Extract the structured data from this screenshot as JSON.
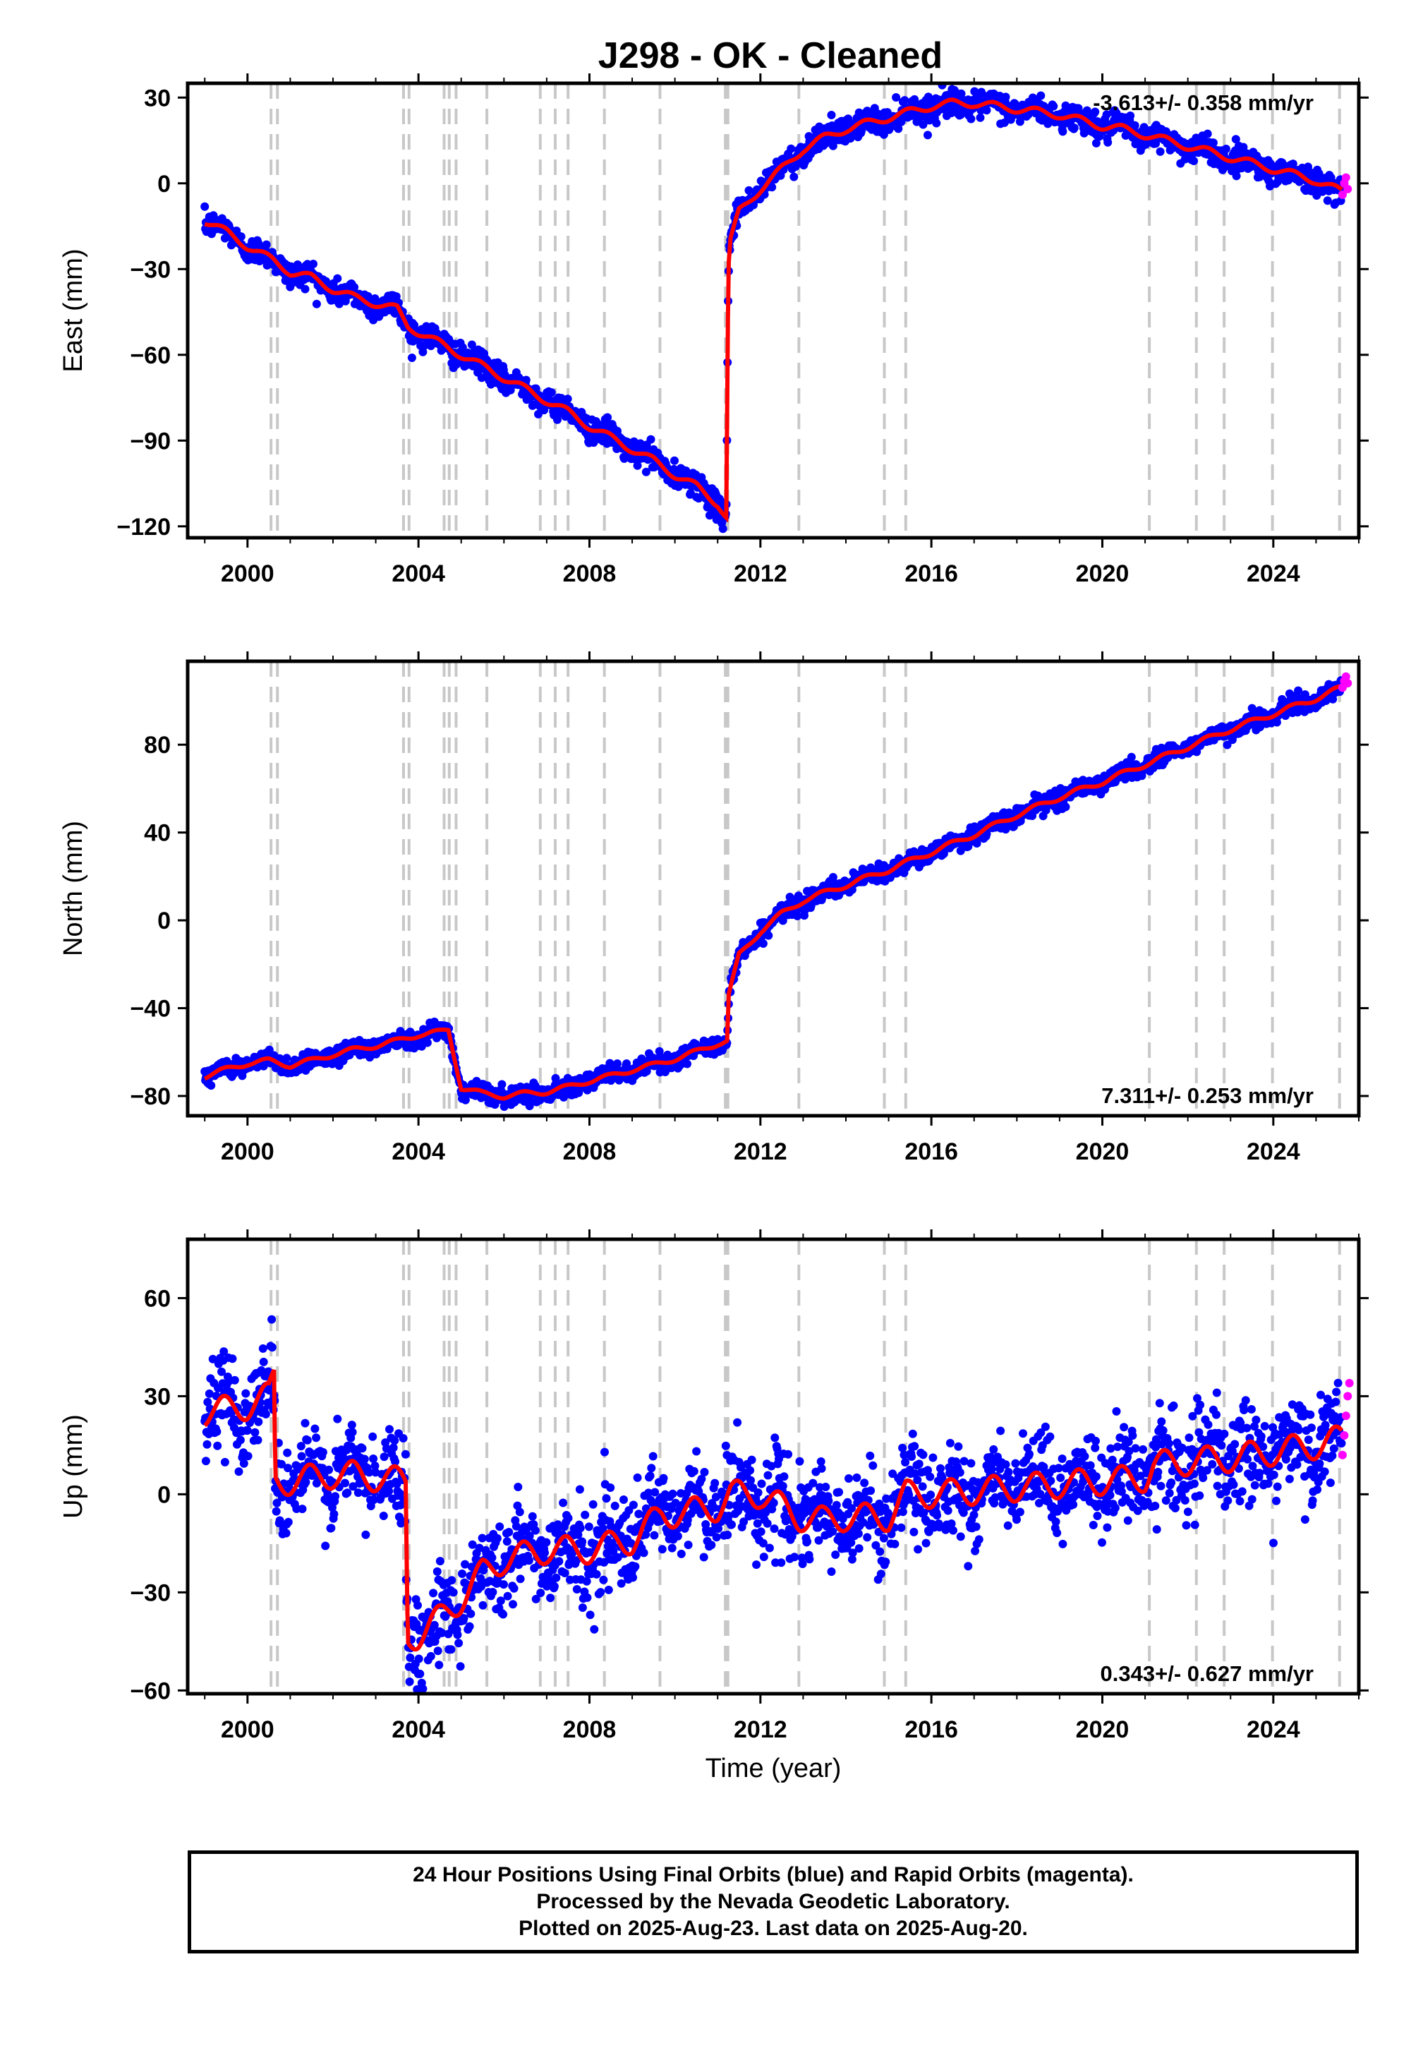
{
  "title": "J298  - OK - Cleaned",
  "colors": {
    "final_orbits": "#0000ff",
    "rapid_orbits": "#ff00ff",
    "model": "#ff0000",
    "steps": "#c8c8c8"
  },
  "step_epochs": [
    2000.55,
    2000.7,
    2003.65,
    2003.78,
    2004.6,
    2004.72,
    2004.88,
    2005.6,
    2006.85,
    2007.2,
    2007.5,
    2008.35,
    2009.65,
    2011.18,
    2011.24,
    2012.9,
    2014.9,
    2015.4,
    2021.1,
    2022.2,
    2022.85,
    2023.98,
    2025.55
  ],
  "footer": {
    "line1": "24 Hour Positions Using Final Orbits (blue) and Rapid Orbits (magenta).",
    "line2": "Processed by the Nevada Geodetic Laboratory.",
    "line3": "Plotted on 2025-Aug-23. Last data on 2025-Aug-20."
  },
  "chart_data": [
    {
      "type": "scatter",
      "ylabel": "East (mm)",
      "xlabel": "",
      "rate_label": "-3.613+/- 0.358 mm/yr",
      "xlim": [
        1998.6,
        2026.0
      ],
      "ylim": [
        -124,
        35
      ],
      "yticks": [
        30,
        0,
        -30,
        -60,
        -90,
        -120
      ],
      "ytick_labels": [
        "30",
        "0",
        "−30",
        "−60",
        "−90",
        "−120"
      ],
      "xticks": [
        2000,
        2004,
        2008,
        2012,
        2016,
        2020,
        2024
      ],
      "xtick_labels": [
        "2000",
        "2004",
        "2008",
        "2012",
        "2016",
        "2020",
        "2024"
      ],
      "noise": 2.2,
      "x": [
        1999.0,
        1999.5,
        2000.0,
        2000.6,
        2001.0,
        2001.5,
        2002.0,
        2002.5,
        2003.0,
        2003.5,
        2003.75,
        2004.0,
        2004.5,
        2005.0,
        2005.5,
        2006.0,
        2006.5,
        2007.0,
        2007.5,
        2008.0,
        2008.5,
        2009.0,
        2009.5,
        2010.0,
        2010.5,
        2011.0,
        2011.2,
        2011.25,
        2011.3,
        2011.5,
        2012.0,
        2012.5,
        2013.0,
        2013.5,
        2014.0,
        2014.5,
        2015.0,
        2015.5,
        2016.0,
        2016.5,
        2017.0,
        2017.5,
        2018.0,
        2018.5,
        2019.0,
        2019.5,
        2020.0,
        2020.5,
        2021.0,
        2021.5,
        2022.0,
        2022.5,
        2023.0,
        2023.5,
        2024.0,
        2024.5,
        2025.0,
        2025.6
      ],
      "y": [
        -13,
        -17,
        -22,
        -27,
        -31,
        -33,
        -37,
        -40,
        -42,
        -44,
        -50,
        -52,
        -56,
        -60,
        -64,
        -68,
        -72,
        -76,
        -80,
        -85,
        -89,
        -93,
        -97,
        -102,
        -106,
        -112,
        -117,
        -30,
        -20,
        -10,
        -2,
        5,
        12,
        16,
        19,
        21,
        23,
        25,
        27,
        28,
        28,
        27,
        26,
        25,
        24,
        22,
        20,
        19,
        17,
        15,
        13,
        11,
        9,
        7,
        5,
        3,
        1,
        -3
      ],
      "rapid": {
        "x": [
          2025.62,
          2025.66,
          2025.7,
          2025.74
        ],
        "y": [
          -4,
          0,
          2,
          -2
        ]
      }
    },
    {
      "type": "scatter",
      "ylabel": "North (mm)",
      "xlabel": "",
      "rate_label": "7.311+/- 0.253 mm/yr",
      "xlim": [
        1998.6,
        2026.0
      ],
      "ylim": [
        -89,
        118
      ],
      "yticks": [
        80,
        40,
        0,
        -40,
        -80
      ],
      "ytick_labels": [
        "80",
        "40",
        "0",
        "−40",
        "−80"
      ],
      "xticks": [
        2000,
        2004,
        2008,
        2012,
        2016,
        2020,
        2024
      ],
      "xtick_labels": [
        "2000",
        "2004",
        "2008",
        "2012",
        "2016",
        "2020",
        "2024"
      ],
      "noise": 2.0,
      "x": [
        1999.0,
        1999.5,
        2000.0,
        2000.5,
        2001.0,
        2001.5,
        2002.0,
        2002.5,
        2003.0,
        2003.5,
        2004.0,
        2004.5,
        2004.7,
        2005.0,
        2005.5,
        2006.0,
        2006.5,
        2007.0,
        2007.5,
        2008.0,
        2008.5,
        2009.0,
        2009.5,
        2010.0,
        2010.5,
        2011.0,
        2011.22,
        2011.26,
        2011.5,
        2012.0,
        2012.5,
        2013.0,
        2014.0,
        2015.0,
        2016.0,
        2017.0,
        2018.0,
        2019.0,
        2020.0,
        2021.0,
        2022.0,
        2023.0,
        2024.0,
        2025.0,
        2025.6
      ],
      "y": [
        -71,
        -68,
        -65,
        -64,
        -66,
        -64,
        -61,
        -59,
        -57,
        -55,
        -52,
        -51,
        -50,
        -76,
        -79,
        -80,
        -79,
        -78,
        -76,
        -73,
        -71,
        -68,
        -66,
        -63,
        -60,
        -56,
        -55,
        -34,
        -16,
        -5,
        3,
        9,
        16,
        23,
        31,
        39,
        48,
        56,
        63,
        71,
        79,
        87,
        94,
        101,
        106
      ],
      "rapid": {
        "x": [
          2025.62,
          2025.66,
          2025.7,
          2025.74
        ],
        "y": [
          106,
          109,
          111,
          108
        ]
      }
    },
    {
      "type": "scatter",
      "ylabel": "Up (mm)",
      "xlabel": "Time (year)",
      "rate_label": "0.343+/- 0.627 mm/yr",
      "xlim": [
        1998.6,
        2026.0
      ],
      "ylim": [
        -61,
        78
      ],
      "yticks": [
        60,
        30,
        0,
        -30,
        -60
      ],
      "ytick_labels": [
        "60",
        "30",
        "0",
        "−30",
        "−60"
      ],
      "xticks": [
        2000,
        2004,
        2008,
        2012,
        2016,
        2020,
        2024
      ],
      "xtick_labels": [
        "2000",
        "2004",
        "2008",
        "2012",
        "2016",
        "2020",
        "2024"
      ],
      "noise": 7.0,
      "gaps": [
        [
          2003.0,
          2003.1
        ]
      ],
      "x": [
        1999.0,
        1999.5,
        2000.0,
        2000.5,
        2000.62,
        2000.65,
        2001.0,
        2001.5,
        2002.0,
        2002.5,
        2003.0,
        2003.7,
        2003.75,
        2004.0,
        2004.5,
        2005.0,
        2005.5,
        2006.0,
        2007.0,
        2008.0,
        2009.0,
        2009.7,
        2010.0,
        2011.0,
        2011.3,
        2012.0,
        2012.9,
        2013.5,
        2014.0,
        2015.0,
        2015.4,
        2016.0,
        2017.0,
        2018.0,
        2019.0,
        2020.0,
        2021.0,
        2021.2,
        2022.0,
        2023.0,
        2024.0,
        2025.0,
        2025.6
      ],
      "y": [
        25,
        26,
        27,
        30,
        36,
        4,
        4,
        5,
        6,
        6,
        5,
        4,
        -44,
        -43,
        -38,
        -32,
        -24,
        -20,
        -17,
        -17,
        -14,
        -6,
        -6,
        -4,
        0,
        0,
        -7,
        -8,
        -7,
        -7,
        0,
        0,
        1,
        2,
        3,
        4,
        5,
        9,
        10,
        11,
        13,
        15,
        17
      ],
      "rapid": {
        "x": [
          2025.62,
          2025.66,
          2025.7,
          2025.74,
          2025.78
        ],
        "y": [
          12,
          18,
          24,
          30,
          34
        ]
      }
    }
  ]
}
